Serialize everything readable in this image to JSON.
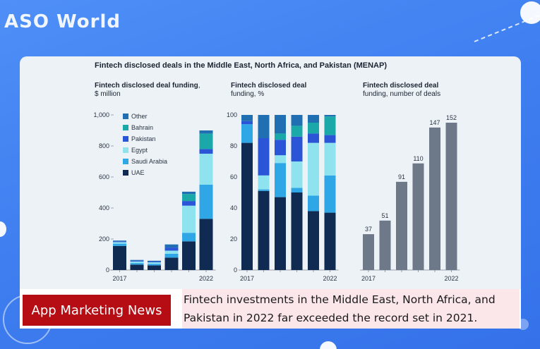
{
  "brand": {
    "logo_text": "ASO World"
  },
  "header": {
    "title": "Fintech disclosed deals in the Middle East, North Africa, and Pakistan (MENAP)"
  },
  "colors": {
    "Other": "#1f6fb2",
    "Bahrain": "#1ba8a8",
    "Pakistan": "#2a55d6",
    "Egypt": "#8fe3ef",
    "Saudi Arabia": "#2fa7e6",
    "UAE": "#0f2b52",
    "deals": "#6d7888"
  },
  "chart_data": [
    {
      "type": "bar",
      "stacked": true,
      "title_bold": "Fintech disclosed deal funding",
      "title_rest": ", $ million",
      "categories": [
        "2017",
        "2018",
        "2019",
        "2020",
        "2021",
        "2022"
      ],
      "x_tick_labels": [
        "2017",
        "",
        "",
        "",
        "",
        "2022"
      ],
      "ylim": [
        0,
        1000
      ],
      "y_ticks": [
        "0",
        "200",
        "400",
        "600",
        "800",
        "1,000"
      ],
      "legend": [
        "Other",
        "Bahrain",
        "Pakistan",
        "Egypt",
        "Saudi Arabia",
        "UAE"
      ],
      "series": [
        {
          "name": "UAE",
          "values": [
            155,
            35,
            30,
            80,
            185,
            330
          ]
        },
        {
          "name": "Saudi Arabia",
          "values": [
            15,
            10,
            10,
            25,
            55,
            220
          ]
        },
        {
          "name": "Egypt",
          "values": [
            10,
            10,
            10,
            20,
            175,
            200
          ]
        },
        {
          "name": "Pakistan",
          "values": [
            5,
            5,
            5,
            20,
            30,
            30
          ]
        },
        {
          "name": "Bahrain",
          "values": [
            0,
            0,
            0,
            0,
            45,
            100
          ]
        },
        {
          "name": "Other",
          "values": [
            5,
            5,
            5,
            20,
            15,
            20
          ]
        }
      ]
    },
    {
      "type": "bar",
      "stacked": true,
      "title_bold": "Fintech disclosed deal",
      "title_rest": "funding, %",
      "categories": [
        "2017",
        "2018",
        "2019",
        "2020",
        "2021",
        "2022"
      ],
      "x_tick_labels": [
        "2017",
        "",
        "",
        "",
        "",
        "2022"
      ],
      "ylim": [
        0,
        100
      ],
      "y_ticks": [
        "0",
        "20",
        "40",
        "60",
        "80",
        "100"
      ],
      "series": [
        {
          "name": "UAE",
          "values": [
            82,
            51,
            47,
            50,
            38,
            37
          ]
        },
        {
          "name": "Saudi Arabia",
          "values": [
            12,
            1,
            22,
            3,
            10,
            24
          ]
        },
        {
          "name": "Egypt",
          "values": [
            0,
            9,
            5,
            17,
            34,
            21
          ]
        },
        {
          "name": "Pakistan",
          "values": [
            2,
            24,
            10,
            16,
            6,
            5
          ]
        },
        {
          "name": "Bahrain",
          "values": [
            0,
            0,
            4,
            7,
            7,
            12
          ]
        },
        {
          "name": "Other",
          "values": [
            4,
            15,
            12,
            7,
            5,
            1
          ]
        }
      ]
    },
    {
      "type": "bar",
      "title_bold": "Fintech disclosed deal",
      "title_rest": "funding, number of deals",
      "categories": [
        "2017",
        "2018",
        "2019",
        "2020",
        "2021",
        "2022"
      ],
      "x_tick_labels": [
        "2017",
        "",
        "",
        "",
        "",
        "2022"
      ],
      "values": [
        37,
        51,
        91,
        110,
        147,
        152
      ],
      "data_labels": [
        "37",
        "51",
        "91",
        "110",
        "147",
        "152"
      ],
      "ylim": [
        0,
        160
      ]
    }
  ],
  "banner": {
    "badge": "App Marketing News",
    "headline": "Fintech investments in the Middle East, North Africa, and Pakistan in 2022 far exceeded the record set in 2021."
  }
}
